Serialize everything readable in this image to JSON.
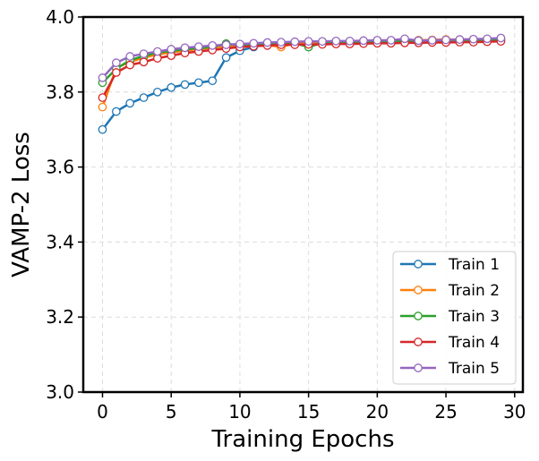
{
  "chart_data": {
    "type": "line",
    "title": "",
    "xlabel": "Training Epochs",
    "ylabel": "VAMP-2 Loss",
    "xlim": [
      -1.4,
      30.6
    ],
    "ylim": [
      3.0,
      4.0
    ],
    "xticks": [
      0,
      5,
      10,
      15,
      20,
      25,
      30
    ],
    "yticks": [
      3.0,
      3.2,
      3.4,
      3.6,
      3.8,
      4.0
    ],
    "xtick_labels": [
      "0",
      "5",
      "10",
      "15",
      "20",
      "25",
      "30"
    ],
    "ytick_labels": [
      "3.0",
      "3.2",
      "3.4",
      "3.6",
      "3.8",
      "4.0"
    ],
    "grid": true,
    "legend_position": "bottom-right",
    "x": [
      0,
      1,
      2,
      3,
      4,
      5,
      6,
      7,
      8,
      9,
      10,
      11,
      12,
      13,
      14,
      15,
      16,
      17,
      18,
      19,
      20,
      21,
      22,
      23,
      24,
      25,
      26,
      27,
      28,
      29
    ],
    "series": [
      {
        "name": "Train 1",
        "color": "#1f77b4",
        "values": [
          3.7,
          3.748,
          3.77,
          3.785,
          3.8,
          3.812,
          3.82,
          3.825,
          3.83,
          3.892,
          3.91,
          3.92,
          3.928,
          3.93,
          3.932,
          3.933,
          3.934,
          3.935,
          3.935,
          3.936,
          3.936,
          3.937,
          3.937,
          3.938,
          3.938,
          3.938,
          3.939,
          3.939,
          3.939,
          3.94
        ]
      },
      {
        "name": "Train 2",
        "color": "#ff7f0e",
        "values": [
          3.76,
          3.865,
          3.88,
          3.892,
          3.9,
          3.906,
          3.91,
          3.915,
          3.918,
          3.922,
          3.925,
          3.927,
          3.925,
          3.92,
          3.93,
          3.932,
          3.933,
          3.934,
          3.935,
          3.936,
          3.937,
          3.937,
          3.938,
          3.938,
          3.939,
          3.94,
          3.94,
          3.94,
          3.941,
          3.941
        ]
      },
      {
        "name": "Train 3",
        "color": "#2ca02c",
        "values": [
          3.825,
          3.862,
          3.885,
          3.896,
          3.905,
          3.91,
          3.914,
          3.917,
          3.92,
          3.929,
          3.924,
          3.926,
          3.928,
          3.929,
          3.93,
          3.92,
          3.931,
          3.932,
          3.933,
          3.934,
          3.934,
          3.935,
          3.935,
          3.936,
          3.936,
          3.937,
          3.937,
          3.937,
          3.938,
          3.938
        ]
      },
      {
        "name": "Train 4",
        "color": "#d62728",
        "values": [
          3.785,
          3.852,
          3.872,
          3.88,
          3.89,
          3.897,
          3.904,
          3.908,
          3.912,
          3.916,
          3.92,
          3.922,
          3.924,
          3.926,
          3.926,
          3.927,
          3.927,
          3.928,
          3.928,
          3.929,
          3.93,
          3.93,
          3.931,
          3.931,
          3.932,
          3.932,
          3.933,
          3.933,
          3.934,
          3.935
        ]
      },
      {
        "name": "Train 5",
        "color": "#9467bd",
        "values": [
          3.838,
          3.878,
          3.895,
          3.902,
          3.908,
          3.914,
          3.918,
          3.921,
          3.924,
          3.926,
          3.928,
          3.93,
          3.932,
          3.933,
          3.934,
          3.935,
          3.935,
          3.936,
          3.936,
          3.937,
          3.938,
          3.938,
          3.942,
          3.937,
          3.938,
          3.939,
          3.94,
          3.941,
          3.942,
          3.944
        ]
      }
    ]
  }
}
